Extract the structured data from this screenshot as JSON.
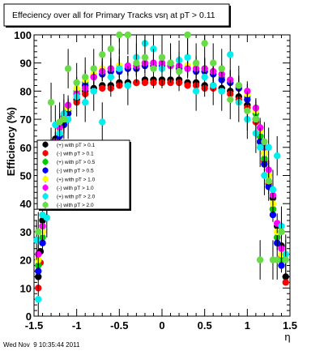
{
  "timestamp": "Wed Nov  9 10:35:44 2011",
  "chart_data": {
    "type": "scatter",
    "title": "Effeciency over all for Primary Tracks vsη at pT > 0.11",
    "xlabel": "η",
    "ylabel": "Efficiency (%)",
    "xlim": [
      -1.5,
      1.5
    ],
    "ylim": [
      0,
      100
    ],
    "x_ticks": [
      -1.5,
      -1,
      -0.5,
      0,
      0.5,
      1,
      1.5
    ],
    "x_tick_labels": [
      "-1.5",
      "-1",
      "-0.5",
      "0",
      "0.5",
      "1",
      "1.5"
    ],
    "y_ticks": [
      0,
      10,
      20,
      30,
      40,
      50,
      60,
      70,
      80,
      90,
      100
    ],
    "y_tick_labels": [
      "0",
      "10",
      "20",
      "30",
      "40",
      "50",
      "60",
      "70",
      "80",
      "90",
      "100"
    ],
    "legend_position": "middle-left",
    "series": [
      {
        "name": "(+) with pT > 0.1",
        "color": "#000000",
        "error": 1.0,
        "points": [
          [
            -1.45,
            14
          ],
          [
            -1.425,
            23
          ],
          [
            -1.4,
            34
          ],
          [
            -1.35,
            48
          ],
          [
            -1.3,
            57
          ],
          [
            -1.25,
            63
          ],
          [
            -1.2,
            68
          ],
          [
            -1.15,
            71
          ],
          [
            -1.1,
            74
          ],
          [
            -1.0,
            77
          ],
          [
            -0.9,
            80
          ],
          [
            -0.8,
            81
          ],
          [
            -0.7,
            82
          ],
          [
            -0.6,
            82
          ],
          [
            -0.5,
            83
          ],
          [
            -0.4,
            83
          ],
          [
            -0.3,
            83
          ],
          [
            -0.2,
            84
          ],
          [
            -0.1,
            84
          ],
          [
            0.0,
            84
          ],
          [
            0.1,
            84
          ],
          [
            0.2,
            84
          ],
          [
            0.3,
            83
          ],
          [
            0.4,
            83
          ],
          [
            0.5,
            82
          ],
          [
            0.6,
            82
          ],
          [
            0.7,
            81
          ],
          [
            0.8,
            80
          ],
          [
            0.9,
            78
          ],
          [
            1.0,
            75
          ],
          [
            1.1,
            70
          ],
          [
            1.15,
            64
          ],
          [
            1.2,
            58
          ],
          [
            1.25,
            50
          ],
          [
            1.3,
            42
          ],
          [
            1.35,
            32
          ],
          [
            1.4,
            25
          ],
          [
            1.45,
            14
          ]
        ]
      },
      {
        "name": "(-) with pT > 0.1",
        "color": "#ff0000",
        "error": 1.0,
        "points": [
          [
            -1.45,
            10
          ],
          [
            -1.425,
            19
          ],
          [
            -1.4,
            30
          ],
          [
            -1.35,
            45
          ],
          [
            -1.3,
            55
          ],
          [
            -1.25,
            61
          ],
          [
            -1.2,
            66
          ],
          [
            -1.15,
            70
          ],
          [
            -1.1,
            73
          ],
          [
            -1.0,
            76
          ],
          [
            -0.9,
            79
          ],
          [
            -0.8,
            80
          ],
          [
            -0.7,
            81
          ],
          [
            -0.6,
            81
          ],
          [
            -0.5,
            82
          ],
          [
            -0.4,
            82
          ],
          [
            -0.3,
            83
          ],
          [
            -0.2,
            83
          ],
          [
            -0.1,
            83
          ],
          [
            0.0,
            83
          ],
          [
            0.1,
            83
          ],
          [
            0.2,
            83
          ],
          [
            0.3,
            82
          ],
          [
            0.4,
            82
          ],
          [
            0.5,
            81
          ],
          [
            0.6,
            81
          ],
          [
            0.7,
            80
          ],
          [
            0.8,
            79
          ],
          [
            0.9,
            77
          ],
          [
            1.0,
            74
          ],
          [
            1.1,
            69
          ],
          [
            1.15,
            62
          ],
          [
            1.2,
            55
          ],
          [
            1.25,
            47
          ],
          [
            1.3,
            38
          ],
          [
            1.35,
            28
          ],
          [
            1.4,
            21
          ],
          [
            1.45,
            12
          ]
        ]
      },
      {
        "name": "(+) with pT > 0.5",
        "color": "#00cc00",
        "error": 2.5,
        "points": [
          [
            -1.45,
            18
          ],
          [
            -1.4,
            28
          ],
          [
            -1.35,
            42
          ],
          [
            -1.3,
            52
          ],
          [
            -1.25,
            60
          ],
          [
            -1.2,
            65
          ],
          [
            -1.15,
            69
          ],
          [
            -1.1,
            73
          ],
          [
            -1.0,
            80
          ],
          [
            -0.9,
            83
          ],
          [
            -0.8,
            86
          ],
          [
            -0.7,
            87
          ],
          [
            -0.6,
            88
          ],
          [
            -0.5,
            89
          ],
          [
            -0.4,
            88
          ],
          [
            -0.3,
            89
          ],
          [
            -0.2,
            90
          ],
          [
            -0.1,
            90
          ],
          [
            0.0,
            90
          ],
          [
            0.1,
            90
          ],
          [
            0.2,
            89
          ],
          [
            0.3,
            89
          ],
          [
            0.4,
            88
          ],
          [
            0.5,
            88
          ],
          [
            0.6,
            87
          ],
          [
            0.7,
            85
          ],
          [
            0.8,
            84
          ],
          [
            0.9,
            82
          ],
          [
            1.0,
            78
          ],
          [
            1.1,
            72
          ],
          [
            1.15,
            64
          ],
          [
            1.2,
            56
          ],
          [
            1.25,
            48
          ],
          [
            1.3,
            38
          ],
          [
            1.35,
            28
          ],
          [
            1.4,
            20
          ]
        ]
      },
      {
        "name": "(-) with pT > 0.5",
        "color": "#0000ff",
        "error": 2.5,
        "points": [
          [
            -1.45,
            16
          ],
          [
            -1.4,
            26
          ],
          [
            -1.35,
            40
          ],
          [
            -1.3,
            50
          ],
          [
            -1.25,
            58
          ],
          [
            -1.2,
            64
          ],
          [
            -1.15,
            68
          ],
          [
            -1.1,
            72
          ],
          [
            -1.0,
            79
          ],
          [
            -0.9,
            82
          ],
          [
            -0.8,
            85
          ],
          [
            -0.7,
            86
          ],
          [
            -0.6,
            87
          ],
          [
            -0.5,
            87
          ],
          [
            -0.4,
            88
          ],
          [
            -0.3,
            88
          ],
          [
            -0.2,
            89
          ],
          [
            -0.1,
            89
          ],
          [
            0.0,
            89
          ],
          [
            0.1,
            89
          ],
          [
            0.2,
            88
          ],
          [
            0.3,
            88
          ],
          [
            0.4,
            87
          ],
          [
            0.5,
            87
          ],
          [
            0.6,
            86
          ],
          [
            0.7,
            84
          ],
          [
            0.8,
            83
          ],
          [
            0.9,
            81
          ],
          [
            1.0,
            77
          ],
          [
            1.1,
            70
          ],
          [
            1.15,
            62
          ],
          [
            1.2,
            54
          ],
          [
            1.25,
            46
          ],
          [
            1.3,
            36
          ],
          [
            1.35,
            26
          ],
          [
            1.4,
            18
          ]
        ]
      },
      {
        "name": "(+) with pT > 1.0",
        "color": "#ffff00",
        "error": 3.5,
        "points": [
          [
            -1.45,
            20
          ],
          [
            -1.4,
            30
          ],
          [
            -1.35,
            44
          ],
          [
            -1.3,
            54
          ],
          [
            -1.25,
            61
          ],
          [
            -1.2,
            66
          ],
          [
            -1.15,
            70
          ],
          [
            -1.1,
            74
          ],
          [
            -1.0,
            81
          ],
          [
            -0.9,
            84
          ],
          [
            -0.8,
            86
          ],
          [
            -0.7,
            88
          ],
          [
            -0.6,
            88
          ],
          [
            -0.5,
            89
          ],
          [
            -0.4,
            89
          ],
          [
            -0.3,
            89
          ],
          [
            -0.2,
            90
          ],
          [
            -0.1,
            90
          ],
          [
            0.0,
            90
          ],
          [
            0.1,
            90
          ],
          [
            0.2,
            89
          ],
          [
            0.3,
            89
          ],
          [
            0.4,
            89
          ],
          [
            0.5,
            88
          ],
          [
            0.6,
            87
          ],
          [
            0.7,
            86
          ],
          [
            0.8,
            84
          ],
          [
            0.9,
            82
          ],
          [
            1.0,
            79
          ],
          [
            1.1,
            73
          ],
          [
            1.15,
            66
          ],
          [
            1.2,
            58
          ],
          [
            1.25,
            50
          ],
          [
            1.3,
            40
          ],
          [
            1.35,
            30
          ],
          [
            1.4,
            22
          ]
        ]
      },
      {
        "name": "(-) with pT > 1.0",
        "color": "#ff00ff",
        "error": 3.5,
        "points": [
          [
            -1.45,
            22
          ],
          [
            -1.4,
            32
          ],
          [
            -1.35,
            46
          ],
          [
            -1.3,
            55
          ],
          [
            -1.25,
            62
          ],
          [
            -1.2,
            67
          ],
          [
            -1.15,
            71
          ],
          [
            -1.1,
            75
          ],
          [
            -1.0,
            79
          ],
          [
            -0.9,
            81
          ],
          [
            -0.8,
            85
          ],
          [
            -0.7,
            87
          ],
          [
            -0.6,
            88
          ],
          [
            -0.5,
            88
          ],
          [
            -0.4,
            89
          ],
          [
            -0.3,
            89
          ],
          [
            -0.2,
            90
          ],
          [
            -0.1,
            90
          ],
          [
            0.0,
            90
          ],
          [
            0.1,
            89
          ],
          [
            0.2,
            89
          ],
          [
            0.3,
            88
          ],
          [
            0.4,
            88
          ],
          [
            0.5,
            88
          ],
          [
            0.6,
            87
          ],
          [
            0.7,
            86
          ],
          [
            0.8,
            84
          ],
          [
            0.9,
            82
          ],
          [
            1.0,
            80
          ],
          [
            1.1,
            74
          ],
          [
            1.15,
            67
          ],
          [
            1.2,
            60
          ],
          [
            1.25,
            52
          ],
          [
            1.3,
            43
          ],
          [
            1.35,
            33
          ],
          [
            1.4,
            24
          ]
        ]
      },
      {
        "name": "(+) with pT > 2.0",
        "color": "#00eeee",
        "error": 7.0,
        "points": [
          [
            -1.47,
            27
          ],
          [
            -1.45,
            6
          ],
          [
            -1.4,
            36
          ],
          [
            -1.35,
            35
          ],
          [
            -1.3,
            60
          ],
          [
            -1.25,
            68
          ],
          [
            -1.2,
            65
          ],
          [
            -1.15,
            72
          ],
          [
            -1.1,
            70
          ],
          [
            -1.0,
            78
          ],
          [
            -0.9,
            76
          ],
          [
            -0.8,
            80
          ],
          [
            -0.7,
            69
          ],
          [
            -0.6,
            85
          ],
          [
            -0.5,
            88
          ],
          [
            -0.4,
            82
          ],
          [
            -0.3,
            92
          ],
          [
            -0.2,
            97
          ],
          [
            -0.1,
            95
          ],
          [
            0.0,
            88
          ],
          [
            0.1,
            90
          ],
          [
            0.2,
            91
          ],
          [
            0.3,
            92
          ],
          [
            0.4,
            80
          ],
          [
            0.5,
            85
          ],
          [
            0.6,
            82
          ],
          [
            0.7,
            80
          ],
          [
            0.8,
            93
          ],
          [
            0.9,
            76
          ],
          [
            1.0,
            70
          ],
          [
            1.1,
            65
          ],
          [
            1.15,
            60
          ],
          [
            1.2,
            50
          ],
          [
            1.25,
            60
          ],
          [
            1.3,
            45
          ],
          [
            1.35,
            57
          ],
          [
            1.4,
            32
          ],
          [
            1.45,
            22
          ]
        ]
      },
      {
        "name": "(-) with pT > 2.0",
        "color": "#66dd44",
        "error": 7.0,
        "points": [
          [
            -1.45,
            30
          ],
          [
            -1.4,
            45
          ],
          [
            -1.35,
            43
          ],
          [
            -1.3,
            76
          ],
          [
            -1.2,
            69
          ],
          [
            -1.15,
            70
          ],
          [
            -1.1,
            88
          ],
          [
            -1.0,
            83
          ],
          [
            -0.9,
            85
          ],
          [
            -0.8,
            88
          ],
          [
            -0.7,
            93
          ],
          [
            -0.6,
            95
          ],
          [
            -0.5,
            100
          ],
          [
            -0.4,
            100
          ],
          [
            -0.3,
            90
          ],
          [
            -0.2,
            92
          ],
          [
            -0.1,
            88
          ],
          [
            0.0,
            92
          ],
          [
            0.1,
            90
          ],
          [
            0.2,
            87
          ],
          [
            0.3,
            100
          ],
          [
            0.4,
            90
          ],
          [
            0.5,
            97
          ],
          [
            0.6,
            90
          ],
          [
            0.7,
            88
          ],
          [
            0.8,
            77
          ],
          [
            0.9,
            82
          ],
          [
            1.0,
            73
          ],
          [
            1.1,
            70
          ],
          [
            1.15,
            20
          ],
          [
            1.2,
            62
          ],
          [
            1.25,
            48
          ],
          [
            1.3,
            20
          ],
          [
            1.35,
            20
          ],
          [
            1.4,
            30
          ],
          [
            1.45,
            20
          ]
        ]
      }
    ]
  }
}
